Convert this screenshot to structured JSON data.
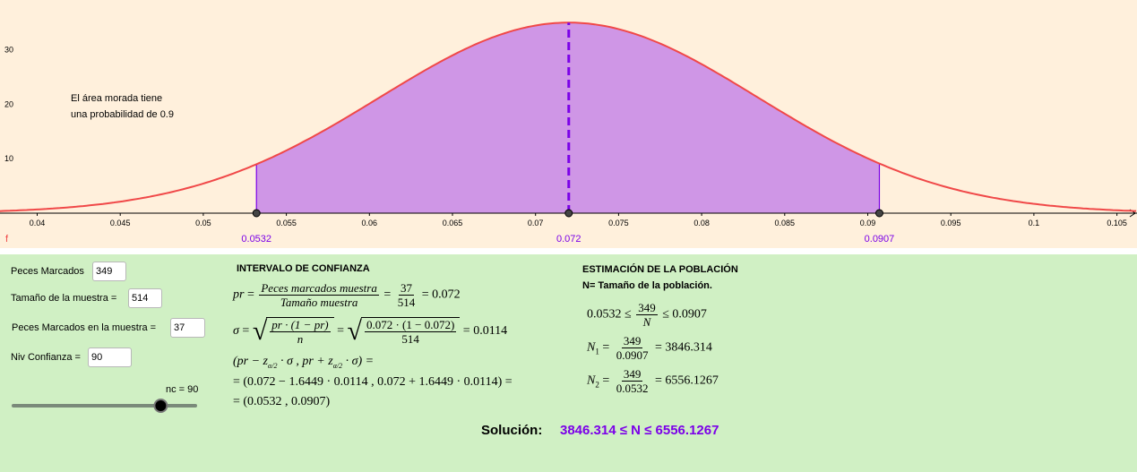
{
  "graph": {
    "x_ticks": [
      "0.04",
      "0.045",
      "0.05",
      "0.055",
      "0.06",
      "0.065",
      "0.07",
      "0.075",
      "0.08",
      "0.085",
      "0.09",
      "0.095",
      "0.1",
      "0.105"
    ],
    "y_ticks": [
      "10",
      "20",
      "30"
    ],
    "function_label": "f",
    "annotation_line1": "El área morada tiene",
    "annotation_line2": "una probabilidad de 0.9",
    "lower_bound": 0.0532,
    "mean": 0.072,
    "upper_bound": 0.0907,
    "lower_label": "0.0532",
    "mean_label": "0.072",
    "upper_label": "0.0907",
    "sigma": 0.0114,
    "curve_color": "#f04848",
    "area_color": "#cf96e6",
    "accent_color": "#7b00e8"
  },
  "inputs": {
    "marked_label": "Peces Marcados",
    "marked_value": "349",
    "sample_label": "Tamaño de la muestra =",
    "sample_value": "514",
    "in_sample_label": "Peces Marcados en la muestra =",
    "in_sample_value": "37",
    "confidence_label": "Niv Confianza =",
    "confidence_value": "90",
    "slider_label": "nc = 90",
    "slider_value": 90,
    "slider_min": 0,
    "slider_max": 100
  },
  "interval": {
    "title": "INTERVALO DE CONFIANZA",
    "pr_num": "Peces marcados muestra",
    "pr_den": "Tamaño muestra",
    "pr_frac_num": "37",
    "pr_frac_den": "514",
    "pr_result": "= 0.072",
    "sigma_sym_num": "pr · (1 − pr)",
    "sigma_sym_den": "n",
    "sigma_num_num": "0.072 · (1 − 0.072)",
    "sigma_num_den": "514",
    "sigma_result": "= 0.0114",
    "line3": "(pr − z",
    "line3_mid": " · σ , pr + z",
    "line3_end": " · σ) =",
    "line4": "= (0.072 − 1.6449 · 0.0114 , 0.072 + 1.6449 · 0.0114) =",
    "line5": "= (0.0532 , 0.0907)"
  },
  "estimation": {
    "title": "ESTIMACIÓN DE LA POBLACIÓN",
    "subtitle": "N= Tamaño de la población.",
    "ineq_left": "0.0532 ≤",
    "ineq_num": "349",
    "ineq_den": "N",
    "ineq_right": "≤ 0.0907",
    "n1_label": "N",
    "n1_num": "349",
    "n1_den": "0.0907",
    "n1_result": "= 3846.314",
    "n2_label": "N",
    "n2_num": "349",
    "n2_den": "0.0532",
    "n2_result": "= 6556.1267"
  },
  "solution": {
    "label": "Solución:",
    "value": "3846.314 ≤ N ≤ 6556.1267"
  }
}
